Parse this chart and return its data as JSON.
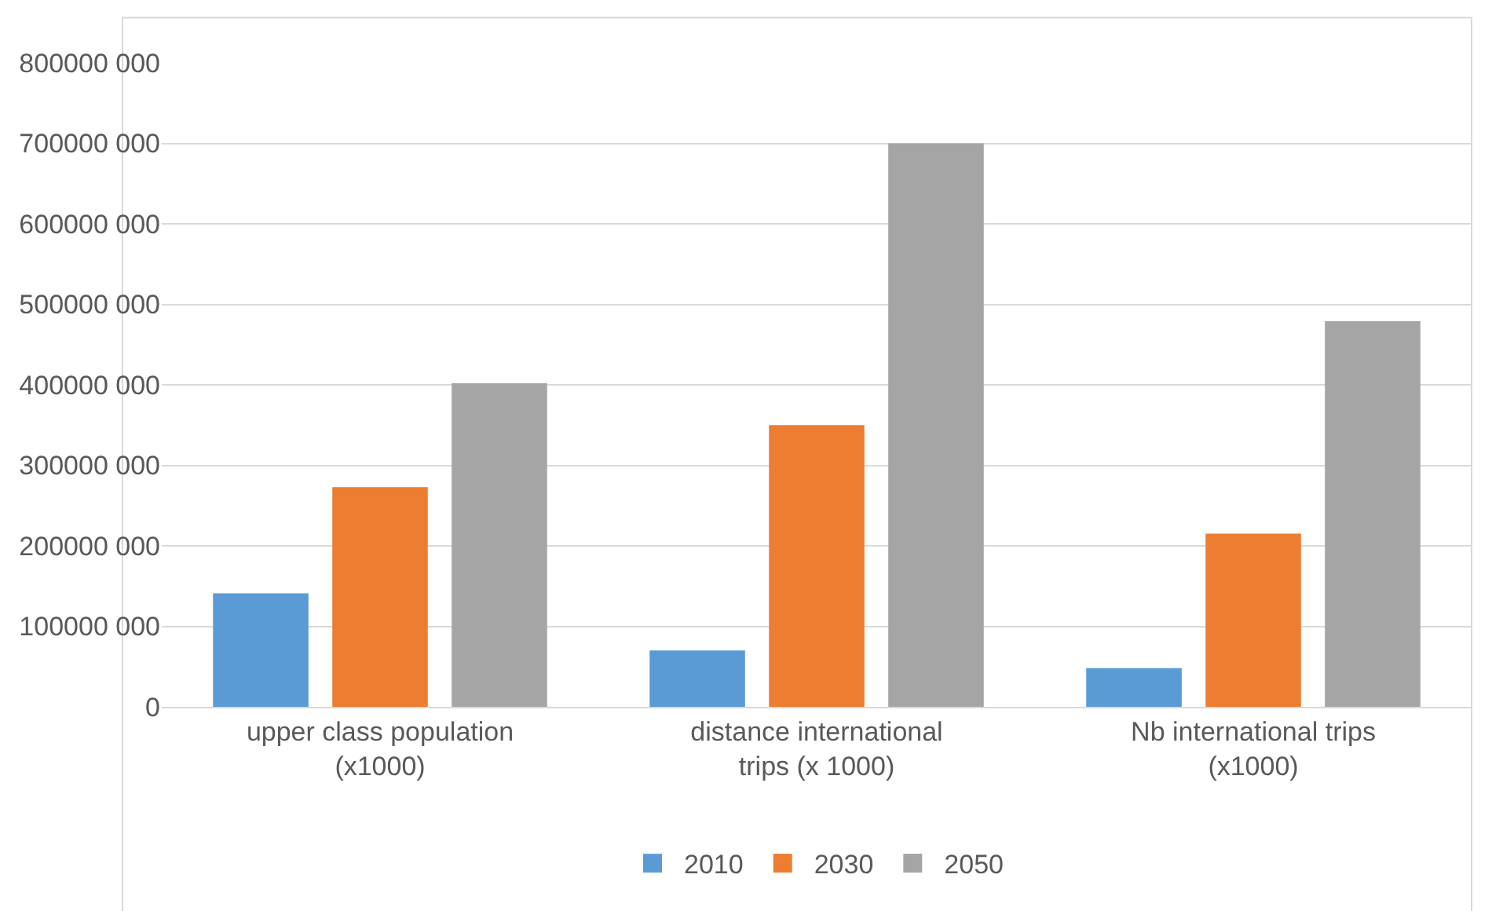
{
  "chart_data": {
    "type": "bar",
    "categories": [
      "upper class population (x1000)",
      "distance international trips (x 1000)",
      "Nb international trips (x1000)"
    ],
    "series": [
      {
        "name": "2010",
        "color": "#5b9bd5",
        "values": [
          141000000,
          70000000,
          48000000
        ]
      },
      {
        "name": "2030",
        "color": "#ed7d31",
        "values": [
          273000000,
          350000000,
          215000000
        ]
      },
      {
        "name": "2050",
        "color": "#a5a5a5",
        "values": [
          402000000,
          700000000,
          479000000
        ]
      }
    ],
    "ylim": [
      0,
      800000000
    ],
    "yticks": [
      0,
      {
        "value": 100000000,
        "label": "100000 000"
      },
      {
        "value": 200000000,
        "label": "200000 000"
      },
      {
        "value": 300000000,
        "label": "300000 000"
      },
      {
        "value": 400000000,
        "label": "400000 000"
      },
      {
        "value": 500000000,
        "label": "500000 000"
      },
      {
        "value": 600000000,
        "label": "600000 000"
      },
      {
        "value": 700000000,
        "label": "700000 000"
      },
      {
        "value": 800000000,
        "label": "800000 000"
      }
    ],
    "grid": "y",
    "legend": "bottom"
  }
}
